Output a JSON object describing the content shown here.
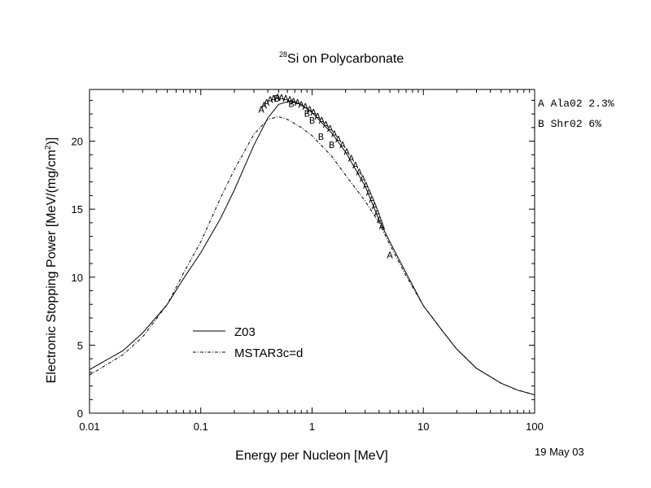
{
  "chart_data": {
    "type": "line",
    "title": {
      "superscript": "28",
      "text": "Si on Polycarbonate"
    },
    "xlabel": "Energy per Nucleon [MeV]",
    "ylabel": {
      "main": "Electronic Stopping Power [MeV/(mg/cm",
      "sup": "2",
      "end": ")]"
    },
    "x_scale": "log",
    "xlim": [
      0.01,
      100
    ],
    "ylim": [
      0,
      23.8
    ],
    "x_ticks": [
      0.01,
      0.1,
      1,
      10,
      100
    ],
    "x_tick_labels": [
      "0.01",
      "0.1",
      "1",
      "10",
      "100"
    ],
    "y_ticks": [
      0,
      5,
      10,
      15,
      20
    ],
    "y_tick_labels": [
      "0",
      "5",
      "10",
      "15",
      "20"
    ],
    "date_label": "19 May 03",
    "legend": {
      "placement": "lower-left",
      "entries": [
        {
          "label": "Z03",
          "style": "solid"
        },
        {
          "label": "MSTAR3c=d",
          "style": "dashdot"
        }
      ]
    },
    "ref_legend": [
      {
        "symbol": "A",
        "text": "Ala02 2.3%"
      },
      {
        "symbol": "B",
        "text": "Shr02 6%"
      }
    ],
    "series": [
      {
        "name": "Z03",
        "style": "solid",
        "points": [
          [
            0.01,
            3.2
          ],
          [
            0.02,
            4.6
          ],
          [
            0.03,
            5.9
          ],
          [
            0.05,
            8.0
          ],
          [
            0.07,
            9.9
          ],
          [
            0.1,
            11.8
          ],
          [
            0.15,
            14.3
          ],
          [
            0.2,
            16.4
          ],
          [
            0.3,
            19.7
          ],
          [
            0.4,
            21.7
          ],
          [
            0.5,
            22.7
          ],
          [
            0.6,
            22.9
          ],
          [
            0.7,
            22.9
          ],
          [
            0.8,
            22.7
          ],
          [
            1,
            22.1
          ],
          [
            1.5,
            20.6
          ],
          [
            2,
            19.2
          ],
          [
            3,
            16.7
          ],
          [
            4,
            14.2
          ],
          [
            5,
            12.6
          ],
          [
            7,
            10.3
          ],
          [
            10,
            7.9
          ],
          [
            15,
            6.0
          ],
          [
            20,
            4.7
          ],
          [
            30,
            3.3
          ],
          [
            50,
            2.2
          ],
          [
            70,
            1.7
          ],
          [
            100,
            1.35
          ]
        ]
      },
      {
        "name": "MSTAR3c=d",
        "style": "dashdot",
        "points": [
          [
            0.01,
            2.8
          ],
          [
            0.02,
            4.3
          ],
          [
            0.03,
            5.6
          ],
          [
            0.05,
            8.0
          ],
          [
            0.07,
            10.3
          ],
          [
            0.1,
            12.6
          ],
          [
            0.15,
            15.8
          ],
          [
            0.2,
            17.9
          ],
          [
            0.3,
            20.5
          ],
          [
            0.4,
            21.6
          ],
          [
            0.5,
            21.8
          ],
          [
            0.6,
            21.6
          ],
          [
            0.8,
            21.0
          ],
          [
            1,
            20.4
          ],
          [
            1.5,
            18.9
          ],
          [
            2,
            17.5
          ],
          [
            3,
            15.6
          ],
          [
            4,
            14.0
          ],
          [
            5,
            12.4
          ],
          [
            7,
            10.1
          ],
          [
            10,
            7.9
          ],
          [
            15,
            6.0
          ],
          [
            20,
            4.7
          ],
          [
            30,
            3.3
          ],
          [
            50,
            2.2
          ],
          [
            70,
            1.7
          ],
          [
            100,
            1.35
          ]
        ]
      }
    ],
    "markers": [
      {
        "label": "A",
        "x": 0.35,
        "y": 22.4
      },
      {
        "label": "A",
        "x": 0.37,
        "y": 22.7
      },
      {
        "label": "A",
        "x": 0.39,
        "y": 22.9
      },
      {
        "label": "A",
        "x": 0.42,
        "y": 23.1
      },
      {
        "label": "A",
        "x": 0.45,
        "y": 23.2
      },
      {
        "label": "A",
        "x": 0.49,
        "y": 23.3
      },
      {
        "label": "A",
        "x": 0.53,
        "y": 23.25
      },
      {
        "label": "A",
        "x": 0.58,
        "y": 23.2
      },
      {
        "label": "A",
        "x": 0.63,
        "y": 23.1
      },
      {
        "label": "A",
        "x": 0.68,
        "y": 23.0
      },
      {
        "label": "A",
        "x": 0.74,
        "y": 22.9
      },
      {
        "label": "A",
        "x": 0.8,
        "y": 22.75
      },
      {
        "label": "A",
        "x": 0.87,
        "y": 22.6
      },
      {
        "label": "A",
        "x": 0.95,
        "y": 22.4
      },
      {
        "label": "A",
        "x": 1.03,
        "y": 22.2
      },
      {
        "label": "A",
        "x": 1.12,
        "y": 21.9
      },
      {
        "label": "A",
        "x": 1.22,
        "y": 21.6
      },
      {
        "label": "A",
        "x": 1.33,
        "y": 21.3
      },
      {
        "label": "A",
        "x": 1.45,
        "y": 21.0
      },
      {
        "label": "A",
        "x": 1.58,
        "y": 20.6
      },
      {
        "label": "A",
        "x": 1.72,
        "y": 20.2
      },
      {
        "label": "A",
        "x": 1.88,
        "y": 19.8
      },
      {
        "label": "A",
        "x": 2.05,
        "y": 19.3
      },
      {
        "label": "A",
        "x": 2.25,
        "y": 18.8
      },
      {
        "label": "A",
        "x": 2.45,
        "y": 18.3
      },
      {
        "label": "A",
        "x": 2.65,
        "y": 17.8
      },
      {
        "label": "A",
        "x": 2.85,
        "y": 17.3
      },
      {
        "label": "A",
        "x": 3.05,
        "y": 16.8
      },
      {
        "label": "A",
        "x": 3.25,
        "y": 16.3
      },
      {
        "label": "A",
        "x": 3.45,
        "y": 15.8
      },
      {
        "label": "A",
        "x": 3.65,
        "y": 15.3
      },
      {
        "label": "A",
        "x": 3.85,
        "y": 14.8
      },
      {
        "label": "A",
        "x": 4.05,
        "y": 14.3
      },
      {
        "label": "A",
        "x": 4.25,
        "y": 13.8
      },
      {
        "label": "A",
        "x": 5.0,
        "y": 11.7
      },
      {
        "label": "B",
        "x": 0.48,
        "y": 23.2
      },
      {
        "label": "B",
        "x": 0.65,
        "y": 22.8
      },
      {
        "label": "B",
        "x": 0.9,
        "y": 22.1
      },
      {
        "label": "B",
        "x": 1.0,
        "y": 21.6
      },
      {
        "label": "B",
        "x": 1.2,
        "y": 20.4
      },
      {
        "label": "B",
        "x": 1.5,
        "y": 19.8
      }
    ]
  }
}
